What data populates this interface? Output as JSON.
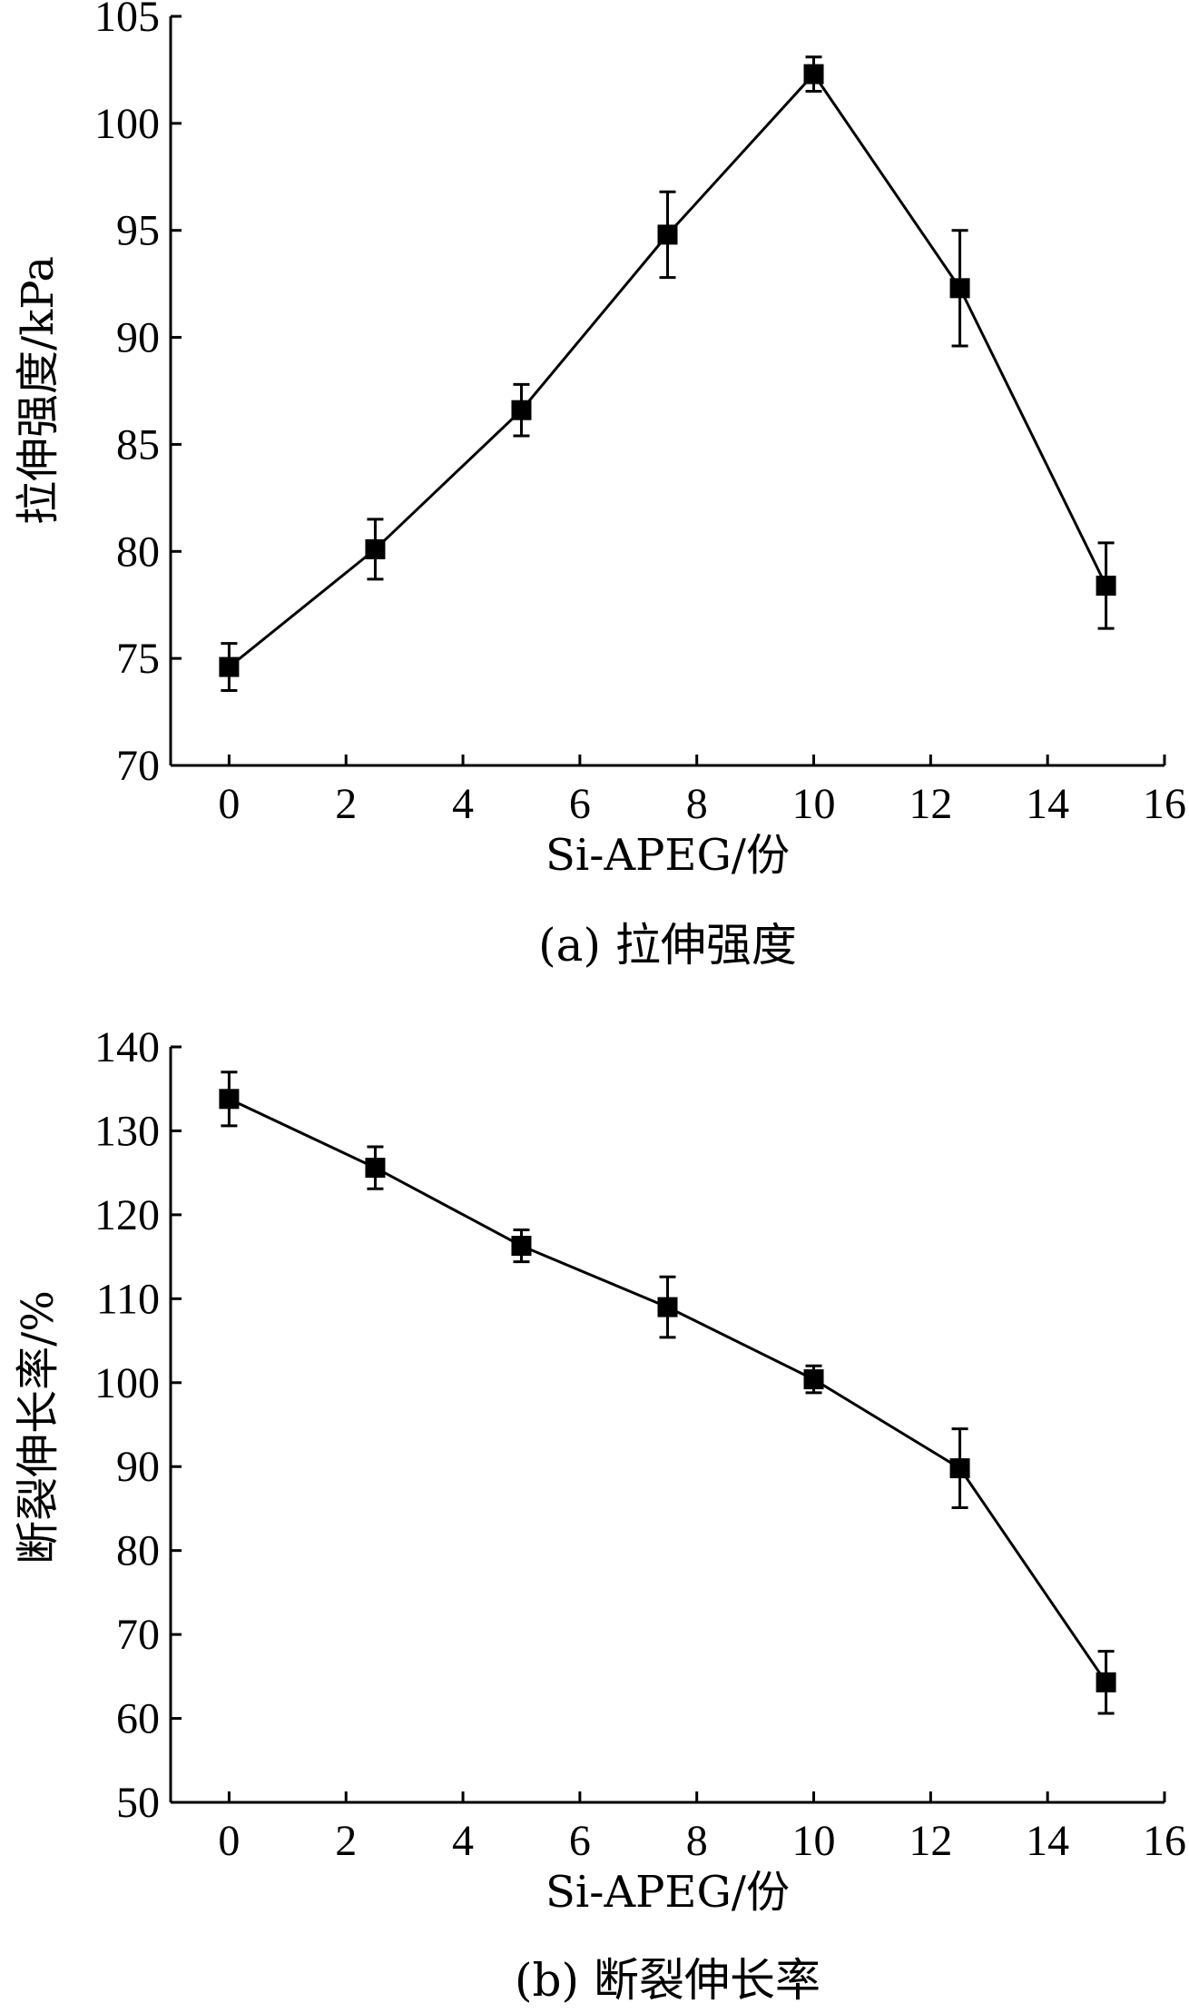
{
  "chart_data": [
    {
      "type": "line",
      "caption": "(a) 拉伸强度",
      "xlabel": "Si-APEG/份",
      "ylabel": "拉伸强度/kPa",
      "xlim": [
        -1,
        16
      ],
      "ylim": [
        70,
        105
      ],
      "xticks": [
        0,
        2,
        4,
        6,
        8,
        10,
        12,
        14,
        16
      ],
      "yticks": [
        70,
        75,
        80,
        85,
        90,
        95,
        100,
        105
      ],
      "grid": false,
      "series": [
        {
          "x": [
            0,
            2.5,
            5,
            7.5,
            10,
            12.5,
            15
          ],
          "y": [
            74.6,
            80.1,
            86.6,
            94.8,
            102.3,
            92.3,
            78.4
          ],
          "err": [
            1.1,
            1.4,
            1.2,
            2.0,
            0.8,
            2.7,
            2.0
          ]
        }
      ]
    },
    {
      "type": "line",
      "caption": "(b) 断裂伸长率",
      "xlabel": "Si-APEG/份",
      "ylabel": "断裂伸长率/%",
      "xlim": [
        -1,
        16
      ],
      "ylim": [
        50,
        140
      ],
      "xticks": [
        0,
        2,
        4,
        6,
        8,
        10,
        12,
        14,
        16
      ],
      "yticks": [
        50,
        60,
        70,
        80,
        90,
        100,
        110,
        120,
        130,
        140
      ],
      "grid": false,
      "series": [
        {
          "x": [
            0,
            2.5,
            5,
            7.5,
            10,
            12.5,
            15
          ],
          "y": [
            133.8,
            125.6,
            116.3,
            109.0,
            100.4,
            89.8,
            64.3
          ],
          "err": [
            3.2,
            2.5,
            1.9,
            3.6,
            1.6,
            4.7,
            3.7
          ]
        }
      ]
    }
  ]
}
